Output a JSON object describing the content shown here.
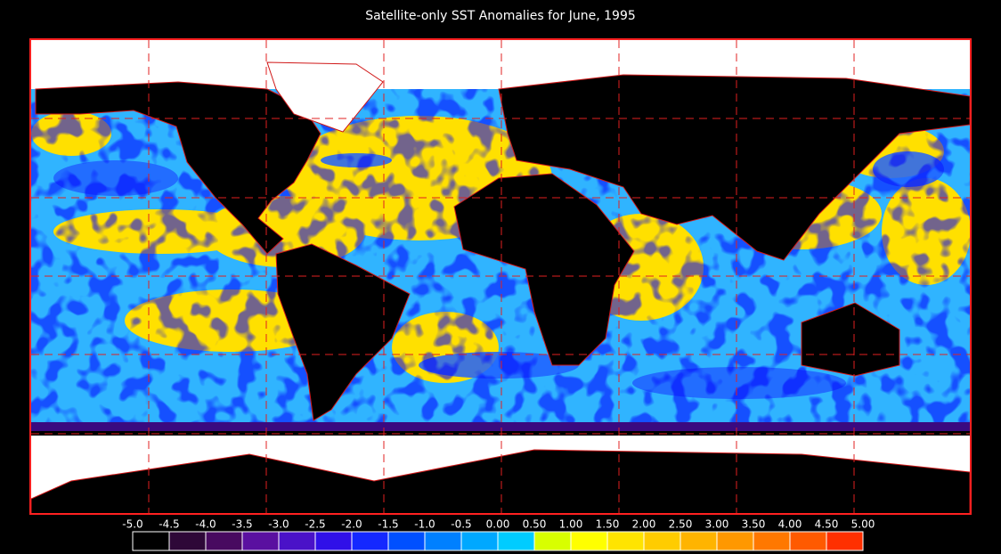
{
  "title": "Satellite-only SST Anomalies for June, 1995",
  "colorbar": {
    "lim": [
      -5,
      5
    ],
    "ticks": [
      {
        "value": -5,
        "label": "-5.0"
      },
      -4.5,
      {
        "value": -4,
        "label": "-4.0"
      },
      -3.5,
      {
        "value": -3,
        "label": "-3.0"
      },
      -2.5,
      {
        "value": -2,
        "label": "-2.0"
      },
      -1.5,
      {
        "value": -1,
        "label": "-1.0"
      },
      -0.5,
      {
        "value": 0,
        "label": "0.00"
      },
      {
        "value": 0.5,
        "label": "0.50"
      },
      {
        "value": 1,
        "label": "1.00"
      },
      {
        "value": 1.5,
        "label": "1.50"
      },
      {
        "value": 2,
        "label": "2.00"
      },
      {
        "value": 2.5,
        "label": "2.50"
      },
      {
        "value": 3,
        "label": "3.00"
      },
      {
        "value": 3.5,
        "label": "3.50"
      },
      {
        "value": 4,
        "label": "4.00"
      },
      {
        "value": 4.5,
        "label": "4.50"
      },
      {
        "value": 5,
        "label": "5.00"
      }
    ],
    "colors": [
      "#000000",
      "#2e0838",
      "#480a60",
      "#5a10a0",
      "#4a12c8",
      "#3010e8",
      "#1428ff",
      "#0050ff",
      "#0080ff",
      "#00a8ff",
      "#00ccff",
      "#d8ff00",
      "#ffff00",
      "#ffe400",
      "#ffcc00",
      "#ffb400",
      "#ff9800",
      "#ff7800",
      "#ff5a00",
      "#ff3000"
    ]
  }
}
